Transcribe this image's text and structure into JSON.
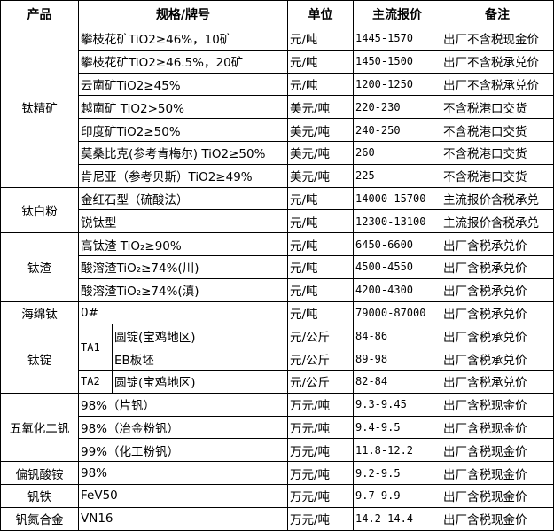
{
  "header": {
    "product": "产品",
    "spec": "规格/牌号",
    "unit": "单位",
    "price": "主流报价",
    "note": "备注"
  },
  "groups": [
    {
      "product": "钛精矿",
      "rows": [
        {
          "spec": "攀枝花矿TiO2≥46%，10矿",
          "unit": "元/吨",
          "price": "1445-1570",
          "note": "出厂不含税现金价"
        },
        {
          "spec": "攀枝花矿TiO2≥46.5%，20矿",
          "unit": "元/吨",
          "price": "1450-1500",
          "note": "出厂不含税承兑价"
        },
        {
          "spec": "云南矿TiO2≥45%",
          "unit": "元/吨",
          "price": "1200-1250",
          "note": "出厂不含税承兑价"
        },
        {
          "spec": "越南矿 TiO2>50%",
          "unit": "美元/吨",
          "price": "220-230",
          "note": "不含税港口交货"
        },
        {
          "spec": "印度矿TiO2≥50%",
          "unit": "美元/吨",
          "price": "240-250",
          "note": "不含税港口交货"
        },
        {
          "spec": "莫桑比克(参考肯梅尔) TiO2≥50%",
          "unit": "美元/吨",
          "price": "260",
          "note": "不含税港口交货"
        },
        {
          "spec": "肯尼亚（参考贝斯）TiO2≥49%",
          "unit": "美元/吨",
          "price": "225",
          "note": "不含税港口交货"
        }
      ]
    },
    {
      "product": "钛白粉",
      "rows": [
        {
          "spec": "金红石型（硫酸法）",
          "unit": "元/吨",
          "price": "14000-15700",
          "note": "主流报价含税承兑"
        },
        {
          "spec": "锐钛型",
          "unit": "元/吨",
          "price": "12300-13100",
          "note": "主流报价含税承兑"
        }
      ]
    },
    {
      "product": "钛渣",
      "rows": [
        {
          "spec": "高钛渣 TiO₂≥90%",
          "unit": "元/吨",
          "price": "6450-6600",
          "note": "出厂含税承兑价"
        },
        {
          "spec": "酸溶渣TiO₂≥74%(川)",
          "unit": "元/吨",
          "price": "4500-4550",
          "note": "出厂含税承兑价"
        },
        {
          "spec": "酸溶渣TiO₂≥74%(滇)",
          "unit": "元/吨",
          "price": "4200-4300",
          "note": "出厂含税承兑价"
        }
      ]
    },
    {
      "product": "海绵钛",
      "rows": [
        {
          "spec": "0#",
          "unit": "元/吨",
          "price": "79000-87000",
          "note": "出厂含税承兑价"
        }
      ]
    },
    {
      "product": "钛锭",
      "rows": [
        {
          "grade": "TA1",
          "grade_span": 2,
          "spec": "圆锭(宝鸡地区)",
          "unit": "元/公斤",
          "price": "84-86",
          "note": "出厂含税承兑价"
        },
        {
          "spec": "EB板坯",
          "unit": "元/公斤",
          "price": "89-98",
          "note": "出厂含税承兑价"
        },
        {
          "grade": "TA2",
          "grade_span": 1,
          "spec": "圆锭(宝鸡地区)",
          "unit": "元/公斤",
          "price": "82-84",
          "note": "出厂含税承兑价"
        }
      ]
    },
    {
      "product": "五氧化二钒",
      "rows": [
        {
          "spec": "98%（片钒）",
          "unit": "万元/吨",
          "price": "9.3-9.45",
          "note": "出厂含税现金价"
        },
        {
          "spec": "98%（冶金粉钒）",
          "unit": "万元/吨",
          "price": "9.4-9.5",
          "note": "出厂含税现金价"
        },
        {
          "spec": "99%（化工粉钒）",
          "unit": "万元/吨",
          "price": "11.8-12.2",
          "note": "出厂含税现金价"
        }
      ]
    },
    {
      "product": "偏钒酸铵",
      "rows": [
        {
          "spec": "98%",
          "unit": "万元/吨",
          "price": "9.2-9.5",
          "note": "出厂含税现金价"
        }
      ]
    },
    {
      "product": "钒铁",
      "rows": [
        {
          "spec": "FeV50",
          "unit": "万元/吨",
          "price": "9.7-9.9",
          "note": "出厂含税现金价"
        }
      ]
    },
    {
      "product": "钒氮合金",
      "rows": [
        {
          "spec": "VN16",
          "unit": "万元/吨",
          "price": "14.2-14.4",
          "note": "出厂含税现金价"
        }
      ]
    }
  ]
}
